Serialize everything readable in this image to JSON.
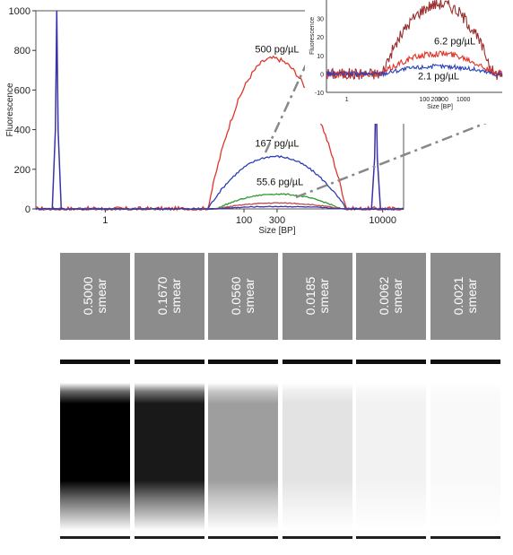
{
  "chart_data": [
    {
      "type": "line",
      "title": "",
      "xlabel": "Size [BP]",
      "ylabel": "Fluorescence",
      "xscale": "log",
      "xlim": [
        0.1,
        20000
      ],
      "ylim": [
        0,
        1000
      ],
      "xticks": [
        "1",
        "100",
        "300",
        "10000"
      ],
      "yticks": [
        "0",
        "200",
        "400",
        "600",
        "800",
        "1000"
      ],
      "grid": false,
      "colors": {
        "500": "#e0352b",
        "167": "#2a3fb8",
        "55.6": "#2d9a2d",
        "low": "#c04a4a",
        "marker": "#3a32a8"
      },
      "markers": [
        {
          "size": 0.2,
          "peak": 1000
        },
        {
          "size": 8000,
          "peak": 640
        }
      ],
      "series": [
        {
          "name": "500 pg/µL",
          "peak_size": 260,
          "peak": 760,
          "start": 30,
          "end": 3000
        },
        {
          "name": "167 pg/µL",
          "peak_size": 280,
          "peak": 265,
          "start": 30,
          "end": 3000
        },
        {
          "name": "55.6 pg/µL",
          "peak_size": 300,
          "peak": 75,
          "start": 40,
          "end": 2500
        },
        {
          "name": "",
          "peak_size": 300,
          "peak": 30,
          "start": 40,
          "end": 2500
        },
        {
          "name": "",
          "peak_size": 300,
          "peak": 12,
          "start": 40,
          "end": 2500
        }
      ],
      "annotations": [
        {
          "text": "500 pg/µL",
          "x": 300,
          "y": 790
        },
        {
          "text": "167 pg/µL",
          "x": 300,
          "y": 315
        },
        {
          "text": "55.6 pg/µL",
          "x": 330,
          "y": 120
        }
      ]
    },
    {
      "type": "line",
      "title": "",
      "xlabel": "Size [BP]",
      "ylabel": "Fluorescence",
      "xscale": "log",
      "xlim": [
        0.3,
        10000
      ],
      "ylim": [
        -10,
        40
      ],
      "xticks": [
        "1",
        "100",
        "200",
        "300",
        "1000"
      ],
      "yticks": [
        "-10",
        "0",
        "10",
        "20",
        "30"
      ],
      "grid": false,
      "series": [
        {
          "name": "",
          "peak_size": 250,
          "peak": 38,
          "start": 8,
          "end": 6000
        },
        {
          "name": "6.2 pg/µL",
          "peak_size": 250,
          "peak": 11,
          "start": 8,
          "end": 6000
        },
        {
          "name": "2.1 pg/µL",
          "peak_size": 250,
          "peak": 4,
          "start": 8,
          "end": 6000
        }
      ],
      "annotations": [
        {
          "text": "6.2 pg/µL",
          "x": 600,
          "y": 16
        },
        {
          "text": "2.1 pg/µL",
          "x": 230,
          "y": -3
        }
      ]
    }
  ],
  "gel": {
    "lanes": [
      {
        "label": "0.5000\nsmear",
        "conc": "0.5000",
        "intensity": 1.0
      },
      {
        "label": "0.1670\nsmear",
        "conc": "0.1670",
        "intensity": 0.9
      },
      {
        "label": "0.0560\nsmear",
        "conc": "0.0560",
        "intensity": 0.38
      },
      {
        "label": "0.0185\nsmear",
        "conc": "0.0185",
        "intensity": 0.11
      },
      {
        "label": "0.0062\nsmear",
        "conc": "0.0062",
        "intensity": 0.05
      },
      {
        "label": "0.0021\nsmear",
        "conc": "0.0021",
        "intensity": 0.025
      }
    ]
  }
}
